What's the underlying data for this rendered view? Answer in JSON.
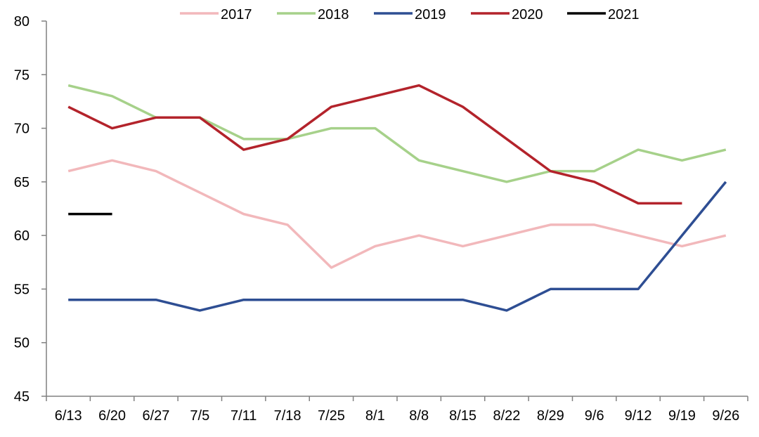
{
  "chart_data": {
    "type": "line",
    "title": "",
    "xlabel": "",
    "ylabel": "",
    "categories": [
      "6/13",
      "6/20",
      "6/27",
      "7/5",
      "7/11",
      "7/18",
      "7/25",
      "8/1",
      "8/8",
      "8/15",
      "8/22",
      "8/29",
      "9/6",
      "9/12",
      "9/19",
      "9/26"
    ],
    "ylim": [
      45,
      80
    ],
    "yticks": [
      45,
      50,
      55,
      60,
      65,
      70,
      75,
      80
    ],
    "grid": false,
    "legend": "top",
    "series": [
      {
        "name": "2017",
        "color": "#f2b8bb",
        "values": [
          66,
          67,
          66,
          64,
          62,
          61,
          57,
          59,
          60,
          59,
          60,
          61,
          61,
          60,
          59,
          60
        ]
      },
      {
        "name": "2018",
        "color": "#a6d18a",
        "values": [
          74,
          73,
          71,
          71,
          69,
          69,
          70,
          70,
          67,
          66,
          65,
          66,
          66,
          68,
          67,
          68
        ]
      },
      {
        "name": "2019",
        "color": "#2e4e93",
        "values": [
          54,
          54,
          54,
          53,
          54,
          54,
          54,
          54,
          54,
          54,
          53,
          55,
          55,
          55,
          60,
          65
        ]
      },
      {
        "name": "2020",
        "color": "#b3232b",
        "values": [
          72,
          70,
          71,
          71,
          68,
          69,
          72,
          73,
          74,
          72,
          69,
          66,
          65,
          63,
          63,
          null
        ]
      },
      {
        "name": "2021",
        "color": "#000000",
        "values": [
          62,
          62,
          null,
          null,
          null,
          null,
          null,
          null,
          null,
          null,
          null,
          null,
          null,
          null,
          null,
          null
        ]
      }
    ]
  }
}
